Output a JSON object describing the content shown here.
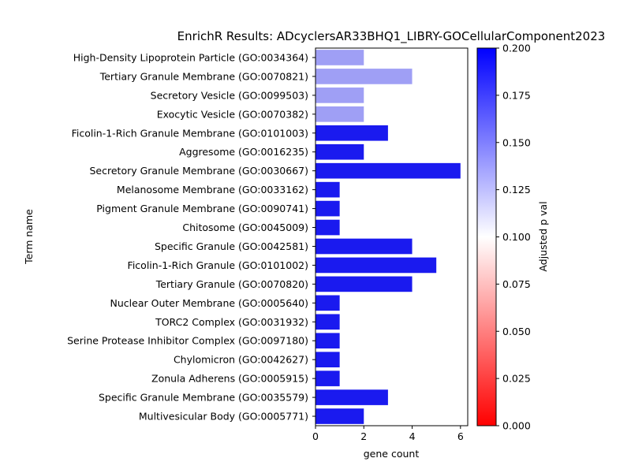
{
  "chart_data": {
    "type": "bar",
    "orientation": "horizontal",
    "title": "EnrichR Results: ADcyclersAR33BHQ1_LIBRY-GOCellularComponent2023",
    "xlabel": "gene count",
    "ylabel": "Term name",
    "xlim": [
      0,
      6.3
    ],
    "xticks": [
      0,
      2,
      4,
      6
    ],
    "grid": false,
    "categories": [
      "High-Density Lipoprotein Particle (GO:0034364)",
      "Tertiary Granule Membrane (GO:0070821)",
      "Secretory Vesicle (GO:0099503)",
      "Exocytic Vesicle (GO:0070382)",
      "Ficolin-1-Rich Granule Membrane (GO:0101003)",
      "Aggresome (GO:0016235)",
      "Secretory Granule Membrane (GO:0030667)",
      "Melanosome Membrane (GO:0033162)",
      "Pigment Granule Membrane (GO:0090741)",
      "Chitosome (GO:0045009)",
      "Specific Granule (GO:0042581)",
      "Ficolin-1-Rich Granule (GO:0101002)",
      "Tertiary Granule (GO:0070820)",
      "Nuclear Outer Membrane (GO:0005640)",
      "TORC2 Complex (GO:0031932)",
      "Serine Protease Inhibitor Complex (GO:0097180)",
      "Chylomicron (GO:0042627)",
      "Zonula Adherens (GO:0005915)",
      "Specific Granule Membrane (GO:0035579)",
      "Multivesicular Body (GO:0005771)"
    ],
    "values": [
      2,
      4,
      2,
      2,
      3,
      2,
      6,
      1,
      1,
      1,
      4,
      5,
      4,
      1,
      1,
      1,
      1,
      1,
      3,
      2
    ],
    "bar_colors": [
      "#9f9ff5",
      "#9f9ff5",
      "#9f9ff5",
      "#9f9ff5",
      "#1a1aef",
      "#1a1aef",
      "#1a1aef",
      "#1a1aef",
      "#1a1aef",
      "#1a1aef",
      "#1a1aef",
      "#1a1aef",
      "#1a1aef",
      "#1a1aef",
      "#1a1aef",
      "#1a1aef",
      "#1a1aef",
      "#1a1aef",
      "#1a1aef",
      "#1a1aef"
    ],
    "colorbar": {
      "label": "Adjusted p val",
      "range": [
        0,
        0.2
      ],
      "ticks": [
        "0.000",
        "0.025",
        "0.050",
        "0.075",
        "0.100",
        "0.125",
        "0.150",
        "0.175",
        "0.200"
      ],
      "colormap": [
        "#ff0000",
        "#ffffff",
        "#0000ff"
      ]
    }
  }
}
